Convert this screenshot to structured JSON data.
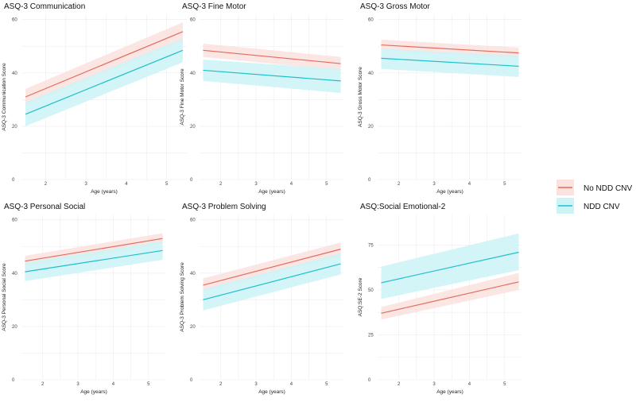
{
  "chart_data": [
    {
      "type": "line",
      "title": "ASQ-3 Communication",
      "xlabel": "Age (years)",
      "ylabel": "ASQ-3 Communication Score",
      "xlim": [
        1.4,
        5.5
      ],
      "ylim": [
        0,
        62
      ],
      "xticks": [
        2,
        3,
        4,
        5
      ],
      "yticks": [
        0,
        20,
        40,
        60
      ],
      "series": [
        {
          "name": "No NDD CNV",
          "x": [
            1.5,
            5.4
          ],
          "y": [
            31,
            55.5
          ],
          "lower": [
            28,
            52
          ],
          "upper": [
            34,
            59
          ]
        },
        {
          "name": "NDD CNV",
          "x": [
            1.5,
            5.4
          ],
          "y": [
            24.5,
            48.5
          ],
          "lower": [
            20,
            44
          ],
          "upper": [
            29,
            53
          ]
        }
      ]
    },
    {
      "type": "line",
      "title": "ASQ-3 Fine Motor",
      "xlabel": "Age (years)",
      "ylabel": "ASQ-3 Fine Motor Score",
      "xlim": [
        1.4,
        5.5
      ],
      "ylim": [
        0,
        62
      ],
      "xticks": [
        2,
        3,
        4,
        5
      ],
      "yticks": [
        0,
        20,
        40,
        60
      ],
      "series": [
        {
          "name": "No NDD CNV",
          "x": [
            1.5,
            5.4
          ],
          "y": [
            48.5,
            43.5
          ],
          "lower": [
            46,
            41
          ],
          "upper": [
            51,
            46
          ]
        },
        {
          "name": "NDD CNV",
          "x": [
            1.5,
            5.4
          ],
          "y": [
            41,
            37
          ],
          "lower": [
            37,
            32.5
          ],
          "upper": [
            45,
            41.5
          ]
        }
      ]
    },
    {
      "type": "line",
      "title": "ASQ-3 Gross Motor",
      "xlabel": "Age (years)",
      "ylabel": "ASQ-3 Gross Motor Score",
      "xlim": [
        1.4,
        5.5
      ],
      "ylim": [
        0,
        62
      ],
      "xticks": [
        2,
        3,
        4,
        5
      ],
      "yticks": [
        0,
        20,
        40,
        60
      ],
      "series": [
        {
          "name": "No NDD CNV",
          "x": [
            1.5,
            5.4
          ],
          "y": [
            50.5,
            47.5
          ],
          "lower": [
            48.5,
            45.5
          ],
          "upper": [
            52.5,
            49.5
          ]
        },
        {
          "name": "NDD CNV",
          "x": [
            1.5,
            5.4
          ],
          "y": [
            45.5,
            42.5
          ],
          "lower": [
            41.5,
            38.5
          ],
          "upper": [
            49,
            46.5
          ]
        }
      ]
    },
    {
      "type": "line",
      "title": "ASQ-3 Personal Social",
      "xlabel": "Age (years)",
      "ylabel": "ASQ-3 Personal Social Score",
      "xlim": [
        1.4,
        5.5
      ],
      "ylim": [
        0,
        62
      ],
      "xticks": [
        2,
        3,
        4,
        5
      ],
      "yticks": [
        0,
        20,
        40,
        60
      ],
      "series": [
        {
          "name": "No NDD CNV",
          "x": [
            1.5,
            5.4
          ],
          "y": [
            44.5,
            53
          ],
          "lower": [
            42.5,
            51
          ],
          "upper": [
            46.5,
            55
          ]
        },
        {
          "name": "NDD CNV",
          "x": [
            1.5,
            5.4
          ],
          "y": [
            40.5,
            48.5
          ],
          "lower": [
            37,
            45
          ],
          "upper": [
            44,
            52
          ]
        }
      ]
    },
    {
      "type": "line",
      "title": "ASQ-3 Problem Solving",
      "xlabel": "Age (years)",
      "ylabel": "ASQ-3 Problem Solving Score",
      "xlim": [
        1.4,
        5.5
      ],
      "ylim": [
        0,
        62
      ],
      "xticks": [
        2,
        3,
        4,
        5
      ],
      "yticks": [
        0,
        20,
        40,
        60
      ],
      "series": [
        {
          "name": "No NDD CNV",
          "x": [
            1.5,
            5.4
          ],
          "y": [
            35.5,
            49
          ],
          "lower": [
            33,
            46.5
          ],
          "upper": [
            38,
            51.5
          ]
        },
        {
          "name": "NDD CNV",
          "x": [
            1.5,
            5.4
          ],
          "y": [
            30,
            43.5
          ],
          "lower": [
            26,
            39.5
          ],
          "upper": [
            34,
            47.5
          ]
        }
      ]
    },
    {
      "type": "line",
      "title": "ASQ:Social Emotional-2",
      "xlabel": "Age (years)",
      "ylabel": "ASQ:SE-2 Score",
      "xlim": [
        1.4,
        5.5
      ],
      "ylim": [
        0,
        92
      ],
      "xticks": [
        2,
        3,
        4,
        5
      ],
      "yticks": [
        0,
        25,
        50,
        75
      ],
      "series": [
        {
          "name": "No NDD CNV",
          "x": [
            1.5,
            5.4
          ],
          "y": [
            37,
            54.5
          ],
          "lower": [
            33.5,
            50
          ],
          "upper": [
            40.5,
            59.5
          ]
        },
        {
          "name": "NDD CNV",
          "x": [
            1.5,
            5.4
          ],
          "y": [
            54,
            71
          ],
          "lower": [
            45,
            61
          ],
          "upper": [
            63,
            81.5
          ]
        }
      ]
    }
  ],
  "legend": {
    "position": "right",
    "items": [
      {
        "label": "No NDD CNV",
        "line_color": "#e06c5c",
        "band_color": "#fbe2df"
      },
      {
        "label": "NDD CNV",
        "line_color": "#1fbfc9",
        "band_color": "#ccf3f6"
      }
    ]
  }
}
